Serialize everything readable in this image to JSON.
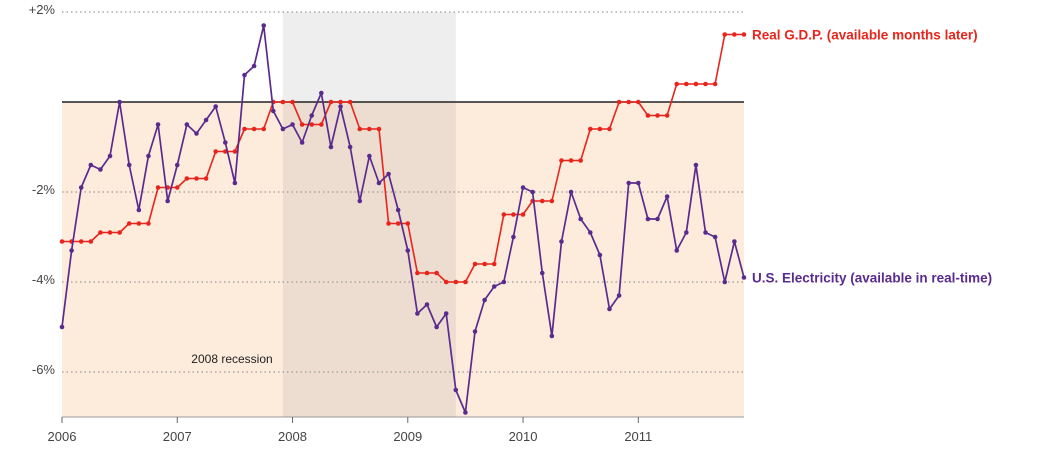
{
  "colors": {
    "gdp": "#e8251c",
    "electricity": "#5a2b8f",
    "shade": "#fdebdc",
    "recession": "#eeeeee",
    "recession_overlap": "#eddcd0",
    "zero_line": "#222222",
    "grid": "#9a9a9a"
  },
  "chart_data": {
    "type": "line",
    "title": "",
    "xlabel": "",
    "ylabel": "",
    "x_range": [
      2006.0,
      2011.917
    ],
    "ylim": [
      -7.0,
      2.0
    ],
    "y_ticks": [
      {
        "value": 2,
        "label": "+2%"
      },
      {
        "value": -2,
        "label": "-2%"
      },
      {
        "value": -4,
        "label": "-4%"
      },
      {
        "value": -6,
        "label": "-6%"
      }
    ],
    "x_ticks": [
      {
        "value": 2006,
        "label": "2006"
      },
      {
        "value": 2007,
        "label": "2007"
      },
      {
        "value": 2008,
        "label": "2008"
      },
      {
        "value": 2009,
        "label": "2009"
      },
      {
        "value": 2010,
        "label": "2010"
      },
      {
        "value": 2011,
        "label": "2011"
      }
    ],
    "grid": true,
    "reference_line": 0,
    "annotations": [
      {
        "text": "2008 recession",
        "x_start": 2007.917,
        "x_end": 2009.417
      }
    ],
    "series": [
      {
        "name": "Real G.D.P. (available months later)",
        "start": 2006.0,
        "step_months": 1,
        "values": [
          -3.1,
          -3.1,
          -3.1,
          -3.1,
          -2.9,
          -2.9,
          -2.9,
          -2.7,
          -2.7,
          -2.7,
          -1.9,
          -1.9,
          -1.9,
          -1.7,
          -1.7,
          -1.7,
          -1.1,
          -1.1,
          -1.1,
          -0.6,
          -0.6,
          -0.6,
          0.0,
          0.0,
          0.0,
          -0.5,
          -0.5,
          -0.5,
          0.0,
          0.0,
          0.0,
          -0.6,
          -0.6,
          -0.6,
          -2.7,
          -2.7,
          -2.7,
          -3.8,
          -3.8,
          -3.8,
          -4.0,
          -4.0,
          -4.0,
          -3.6,
          -3.6,
          -3.6,
          -2.5,
          -2.5,
          -2.5,
          -2.2,
          -2.2,
          -2.2,
          -1.3,
          -1.3,
          -1.3,
          -0.6,
          -0.6,
          -0.6,
          0.0,
          0.0,
          0.0,
          -0.3,
          -0.3,
          -0.3,
          0.4,
          0.4,
          0.4,
          0.4,
          0.4,
          1.5,
          1.5,
          1.5
        ]
      },
      {
        "name": "U.S. Electricity (available in real-time)",
        "start": 2006.0,
        "step_months": 1,
        "values": [
          -5.0,
          -3.3,
          -1.9,
          -1.4,
          -1.5,
          -1.2,
          0.0,
          -1.4,
          -2.4,
          -1.2,
          -0.5,
          -2.2,
          -1.4,
          -0.5,
          -0.7,
          -0.4,
          -0.1,
          -0.9,
          -1.8,
          0.6,
          0.8,
          1.7,
          -0.2,
          -0.6,
          -0.5,
          -0.9,
          -0.3,
          0.2,
          -1.0,
          -0.1,
          -1.0,
          -2.2,
          -1.2,
          -1.8,
          -1.6,
          -2.4,
          -3.3,
          -4.7,
          -4.5,
          -5.0,
          -4.7,
          -6.4,
          -6.9,
          -5.1,
          -4.4,
          -4.1,
          -4.0,
          -3.0,
          -1.9,
          -2.0,
          -3.8,
          -5.2,
          -3.1,
          -2.0,
          -2.6,
          -2.9,
          -3.4,
          -4.6,
          -4.3,
          -1.8,
          -1.8,
          -2.6,
          -2.6,
          -2.1,
          -3.3,
          -2.9,
          -1.4,
          -2.9,
          -3.0,
          -4.0,
          -3.1,
          -3.9
        ]
      }
    ]
  }
}
